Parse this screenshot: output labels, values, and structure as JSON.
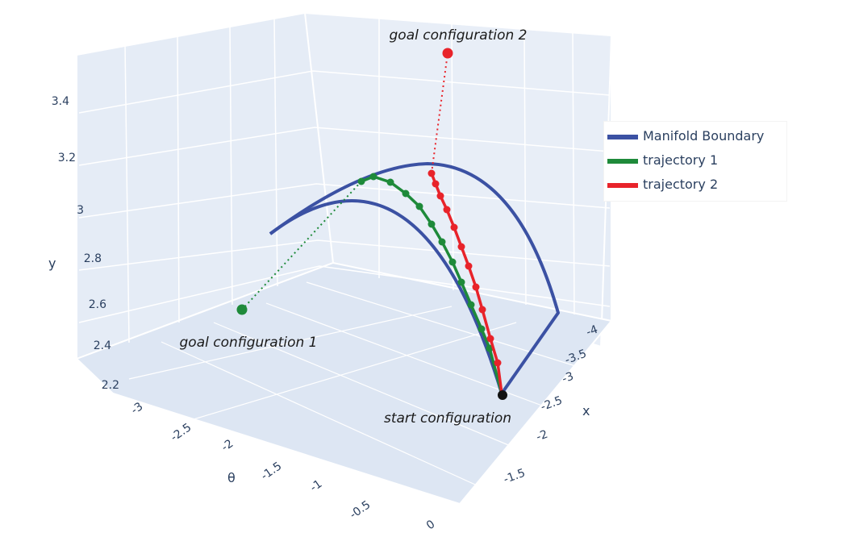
{
  "chart_data": {
    "type": "line3d",
    "axes": {
      "x": {
        "label": "x",
        "ticks": [
          "-4",
          "-3.5",
          "-3",
          "-2.5",
          "-2",
          "-1.5"
        ],
        "range": [
          -4,
          -1.5
        ]
      },
      "y": {
        "label": "y",
        "ticks": [
          "2.2",
          "2.4",
          "2.6",
          "2.8",
          "3",
          "3.2",
          "3.4"
        ],
        "range": [
          2.2,
          3.5
        ]
      },
      "theta": {
        "label": "θ",
        "ticks": [
          "-3",
          "-2.5",
          "-2",
          "-1.5",
          "-1",
          "-0.5",
          "0"
        ],
        "range": [
          -3,
          0
        ]
      }
    },
    "series": [
      {
        "name": "Manifold Boundary",
        "color": "#3b51a3"
      },
      {
        "name": "trajectory 1",
        "color": "#1e8a3a",
        "markers": 12
      },
      {
        "name": "trajectory 2",
        "color": "#e8232a",
        "markers": 10
      }
    ],
    "annotations": [
      {
        "text": "goal configuration 2",
        "color": "#e8232a"
      },
      {
        "text": "goal configuration 1",
        "color": "#1e8a3a"
      },
      {
        "text": "start configuration",
        "color": "#111111"
      }
    ],
    "legend_position": "right",
    "grid": true
  }
}
